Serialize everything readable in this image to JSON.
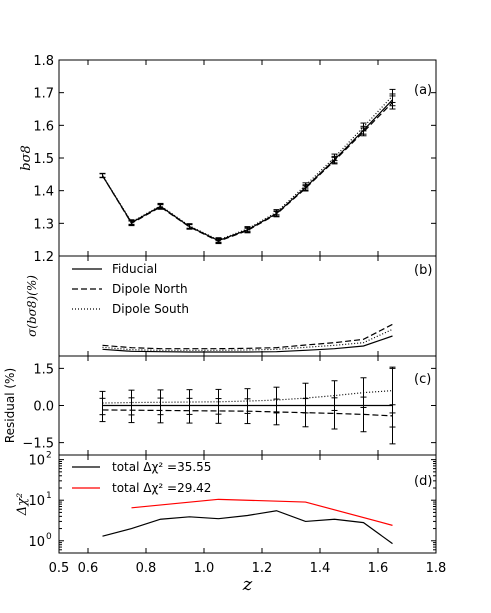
{
  "chart_data": [
    {
      "panel": "(a)",
      "type": "line",
      "ylabel": "bσ8",
      "ylim": [
        1.2,
        1.8
      ],
      "yticks": [
        1.2,
        1.3,
        1.4,
        1.5,
        1.6,
        1.7,
        1.8
      ],
      "x": [
        0.65,
        0.75,
        0.85,
        0.95,
        1.05,
        1.15,
        1.25,
        1.35,
        1.45,
        1.55,
        1.65
      ],
      "series": [
        {
          "style": "solid",
          "values": [
            1.446,
            1.302,
            1.352,
            1.29,
            1.247,
            1.28,
            1.33,
            1.41,
            1.495,
            1.585,
            1.678
          ],
          "errors": [
            0.006,
            0.007,
            0.007,
            0.007,
            0.007,
            0.007,
            0.008,
            0.008,
            0.01,
            0.012,
            0.018
          ]
        },
        {
          "style": "dashed",
          "values": [
            1.446,
            1.3,
            1.35,
            1.289,
            1.245,
            1.278,
            1.328,
            1.407,
            1.492,
            1.58,
            1.67
          ],
          "errors": [
            0.006,
            0.007,
            0.007,
            0.007,
            0.007,
            0.007,
            0.008,
            0.008,
            0.01,
            0.012,
            0.02
          ]
        },
        {
          "style": "dotted",
          "values": [
            1.447,
            1.304,
            1.354,
            1.292,
            1.249,
            1.283,
            1.334,
            1.416,
            1.502,
            1.595,
            1.69
          ],
          "errors": [
            0.006,
            0.007,
            0.007,
            0.007,
            0.007,
            0.007,
            0.008,
            0.008,
            0.01,
            0.012,
            0.02
          ]
        }
      ]
    },
    {
      "panel": "(b)",
      "type": "line",
      "ylabel": "σ(bσ8)(%)",
      "ylim": [
        0,
        3
      ],
      "x": [
        0.65,
        0.75,
        0.85,
        0.95,
        1.05,
        1.15,
        1.25,
        1.35,
        1.45,
        1.55,
        1.65
      ],
      "series": [
        {
          "name": "Fiducial",
          "style": "solid",
          "values": [
            0.2,
            0.14,
            0.13,
            0.12,
            0.12,
            0.12,
            0.13,
            0.17,
            0.22,
            0.3,
            0.6
          ]
        },
        {
          "name": "Dipole North",
          "style": "dashed",
          "values": [
            0.32,
            0.25,
            0.22,
            0.22,
            0.22,
            0.23,
            0.25,
            0.33,
            0.4,
            0.5,
            0.95
          ]
        },
        {
          "name": "Dipole South",
          "style": "dotted",
          "values": [
            0.26,
            0.19,
            0.17,
            0.17,
            0.17,
            0.18,
            0.2,
            0.26,
            0.32,
            0.4,
            0.8
          ]
        }
      ],
      "legend_position": "top-left"
    },
    {
      "panel": "(c)",
      "type": "line",
      "ylabel": "Residual (%)",
      "ylim": [
        -2.0,
        2.0
      ],
      "yticks": [
        -1.5,
        0.0,
        1.5
      ],
      "yticklabels": [
        "−1.5",
        "0.0",
        "1.5"
      ],
      "x": [
        0.65,
        0.75,
        0.85,
        0.95,
        1.05,
        1.15,
        1.25,
        1.35,
        1.45,
        1.55,
        1.65
      ],
      "series": [
        {
          "style": "solid",
          "values": [
            0,
            0,
            0,
            0,
            0,
            0,
            0,
            0,
            0,
            0,
            0
          ]
        },
        {
          "style": "dashed",
          "values": [
            -0.18,
            -0.19,
            -0.2,
            -0.21,
            -0.22,
            -0.23,
            -0.26,
            -0.29,
            -0.32,
            -0.36,
            -0.42
          ],
          "errors": [
            0.47,
            0.5,
            0.5,
            0.5,
            0.5,
            0.5,
            0.52,
            0.57,
            0.63,
            0.7,
            0.45
          ]
        },
        {
          "style": "dotted",
          "values": [
            0.1,
            0.12,
            0.13,
            0.14,
            0.15,
            0.18,
            0.22,
            0.3,
            0.4,
            0.52,
            0.6
          ],
          "errors": [
            0.47,
            0.5,
            0.5,
            0.5,
            0.5,
            0.5,
            0.52,
            0.6,
            0.6,
            0.6,
            0.9
          ]
        }
      ],
      "center_errorbar": {
        "x": 1.65,
        "low": -1.55,
        "high": 1.55
      }
    },
    {
      "panel": "(d)",
      "type": "line",
      "ylabel": "Δχ²",
      "yscale": "log",
      "ylim": [
        0.5,
        130
      ],
      "yticks": [
        1,
        10,
        100
      ],
      "x": [
        0.65,
        0.75,
        0.85,
        0.95,
        1.05,
        1.15,
        1.25,
        1.35,
        1.45,
        1.55,
        1.65
      ],
      "series": [
        {
          "name": "total Δχ² =35.55",
          "color": "#000000",
          "x": [
            0.65,
            0.75,
            0.85,
            0.95,
            1.05,
            1.15,
            1.25,
            1.35,
            1.45,
            1.55,
            1.65
          ],
          "values": [
            1.3,
            2.0,
            3.4,
            3.9,
            3.5,
            4.2,
            5.5,
            3.0,
            3.4,
            2.8,
            0.85
          ]
        },
        {
          "name": "total Δχ² =29.42",
          "color": "#ff0000",
          "x": [
            0.75,
            1.05,
            1.35,
            1.65
          ],
          "values": [
            6.5,
            10.5,
            9.0,
            2.4
          ]
        }
      ],
      "legend_position": "top-left"
    }
  ],
  "xaxis": {
    "label": "z",
    "xlim": [
      0.5,
      1.8
    ],
    "ticks": [
      0.6,
      0.8,
      1.0,
      1.2,
      1.4,
      1.6,
      1.8
    ]
  },
  "labels": {
    "a": "(a)",
    "b": "(b)",
    "c": "(c)",
    "d": "(d)"
  }
}
